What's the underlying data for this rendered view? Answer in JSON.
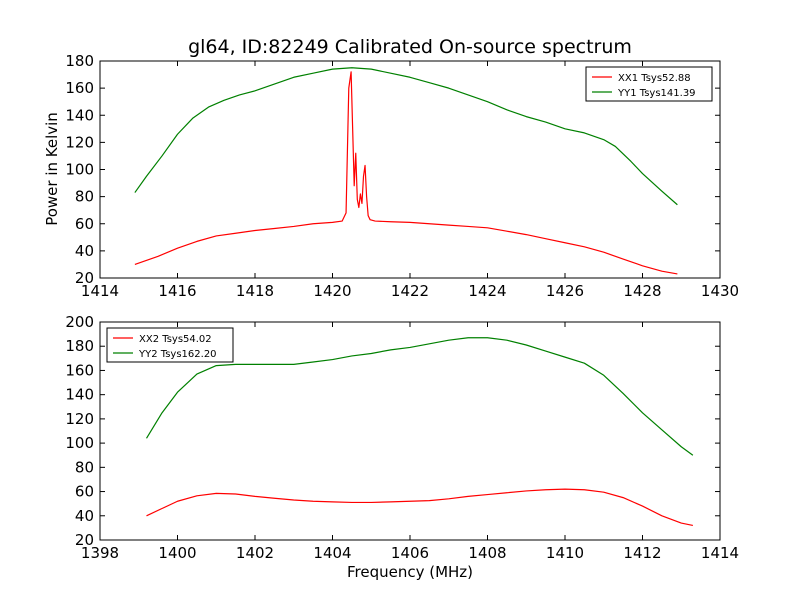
{
  "colors": {
    "xx": "#ff0000",
    "yy": "#008000"
  },
  "chart_data": [
    {
      "type": "line",
      "title": "gl64, ID:82249 Calibrated On-source spectrum",
      "xlabel": "",
      "ylabel": "Power in Kelvin",
      "xlim": [
        1414,
        1430
      ],
      "ylim": [
        20,
        180
      ],
      "xticks": [
        "1414",
        "1416",
        "1418",
        "1420",
        "1422",
        "1424",
        "1426",
        "1428",
        "1430"
      ],
      "yticks": [
        "20",
        "40",
        "60",
        "80",
        "100",
        "120",
        "140",
        "160",
        "180"
      ],
      "legend_position": "upper right",
      "grid": false,
      "series": [
        {
          "name": "XX1 Tsys52.88",
          "color": "#ff0000",
          "x": [
            1414.9,
            1415.5,
            1416.0,
            1416.5,
            1417.0,
            1417.5,
            1418.0,
            1418.5,
            1419.0,
            1419.5,
            1420.0,
            1420.25,
            1420.35,
            1420.42,
            1420.48,
            1420.52,
            1420.56,
            1420.6,
            1420.64,
            1420.68,
            1420.72,
            1420.76,
            1420.8,
            1420.84,
            1420.88,
            1420.92,
            1420.97,
            1421.1,
            1421.5,
            1422.0,
            1422.5,
            1423.0,
            1423.5,
            1424.0,
            1424.5,
            1425.0,
            1425.5,
            1426.0,
            1426.5,
            1427.0,
            1427.5,
            1428.0,
            1428.5,
            1428.9
          ],
          "y": [
            30,
            36,
            42,
            47,
            51,
            53,
            55,
            56.5,
            58,
            60,
            61,
            62,
            68,
            160,
            172,
            130,
            88,
            112,
            78,
            72,
            82,
            75,
            95,
            103,
            80,
            66,
            63,
            62,
            61.5,
            61,
            60,
            59,
            58,
            57,
            54.5,
            52,
            49,
            46,
            43,
            39,
            34,
            29,
            25,
            23
          ]
        },
        {
          "name": "YY1 Tsys141.39",
          "color": "#008000",
          "x": [
            1414.9,
            1415.2,
            1415.6,
            1416.0,
            1416.4,
            1416.8,
            1417.2,
            1417.6,
            1418.0,
            1418.5,
            1419.0,
            1419.5,
            1420.0,
            1420.5,
            1421.0,
            1421.5,
            1422.0,
            1422.5,
            1423.0,
            1423.5,
            1424.0,
            1424.5,
            1425.0,
            1425.5,
            1426.0,
            1426.5,
            1427.0,
            1427.3,
            1427.7,
            1428.0,
            1428.5,
            1428.9
          ],
          "y": [
            83,
            95,
            110,
            126,
            138,
            146,
            151,
            155,
            158,
            163,
            168,
            171,
            174,
            175,
            174,
            171,
            168,
            164,
            160,
            155,
            150,
            144,
            139,
            135,
            130,
            127,
            122,
            117,
            106,
            97,
            84,
            74
          ]
        }
      ]
    },
    {
      "type": "line",
      "title": "",
      "xlabel": "Frequency (MHz)",
      "ylabel": "",
      "xlim": [
        1398,
        1414
      ],
      "ylim": [
        20,
        200
      ],
      "xticks": [
        "1398",
        "1400",
        "1402",
        "1404",
        "1406",
        "1408",
        "1410",
        "1412",
        "1414"
      ],
      "yticks": [
        "20",
        "40",
        "60",
        "80",
        "100",
        "120",
        "140",
        "160",
        "180",
        "200"
      ],
      "legend_position": "upper left",
      "grid": false,
      "series": [
        {
          "name": "XX2 Tsys54.02",
          "color": "#ff0000",
          "x": [
            1399.2,
            1399.6,
            1400.0,
            1400.5,
            1401.0,
            1401.5,
            1402.0,
            1402.5,
            1403.0,
            1403.5,
            1404.0,
            1404.5,
            1405.0,
            1405.5,
            1406.0,
            1406.5,
            1407.0,
            1407.5,
            1408.0,
            1408.5,
            1409.0,
            1409.5,
            1410.0,
            1410.5,
            1411.0,
            1411.5,
            1412.0,
            1412.5,
            1413.0,
            1413.3
          ],
          "y": [
            40,
            46,
            52,
            56.5,
            58.5,
            58,
            56,
            54.5,
            53,
            52,
            51.5,
            51,
            51,
            51.5,
            52,
            52.5,
            54,
            56,
            57.5,
            59,
            60.5,
            61.5,
            62,
            61.5,
            59.5,
            55,
            48,
            40,
            34,
            32
          ]
        },
        {
          "name": "YY2 Tsys162.20",
          "color": "#008000",
          "x": [
            1399.2,
            1399.6,
            1400.0,
            1400.5,
            1401.0,
            1401.5,
            1402.0,
            1402.5,
            1403.0,
            1403.5,
            1404.0,
            1404.5,
            1405.0,
            1405.5,
            1406.0,
            1406.5,
            1407.0,
            1407.5,
            1408.0,
            1408.5,
            1409.0,
            1409.5,
            1410.0,
            1410.5,
            1411.0,
            1411.5,
            1412.0,
            1412.5,
            1413.0,
            1413.3
          ],
          "y": [
            104,
            125,
            142,
            157,
            164,
            165,
            165,
            165,
            165,
            167,
            169,
            172,
            174,
            177,
            179,
            182,
            185,
            187,
            187,
            185,
            181,
            176,
            171,
            166,
            156,
            141,
            125,
            111,
            97,
            90
          ]
        }
      ]
    }
  ]
}
